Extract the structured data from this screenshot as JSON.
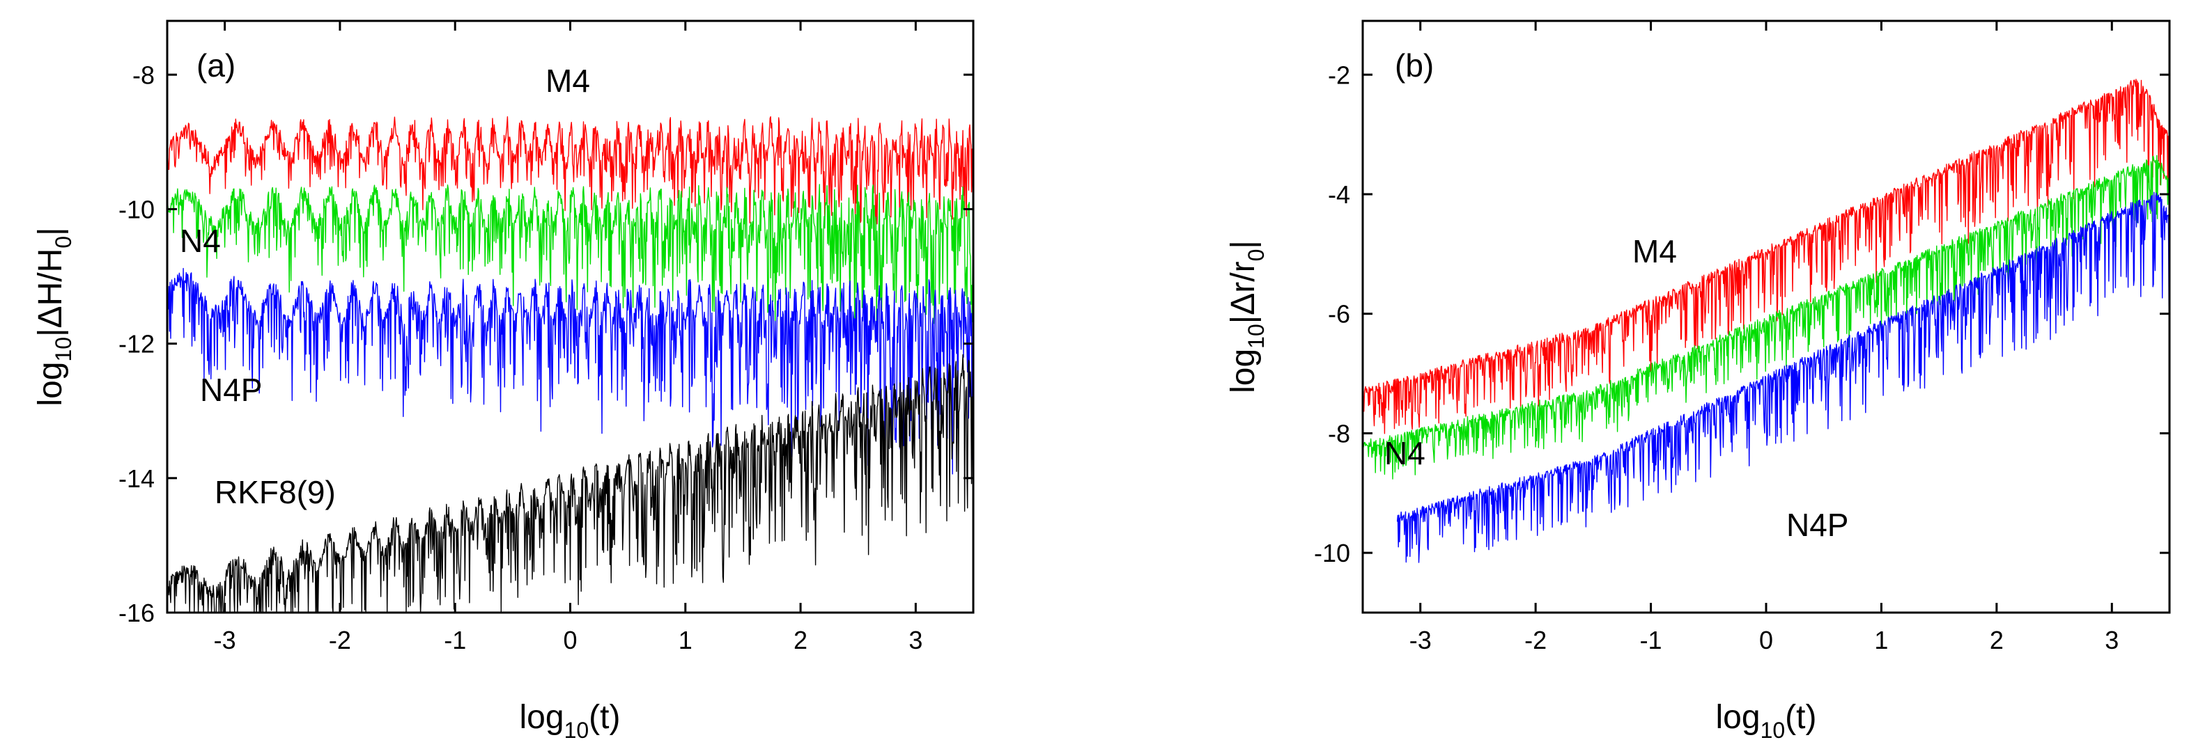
{
  "chart_data": [
    {
      "type": "line",
      "panel_label": "(a)",
      "xlabel": {
        "prefix": "log",
        "sub": "10",
        "suffix": "(t)"
      },
      "ylabel": {
        "prefix": "log",
        "sub": "10",
        "mid": "|ΔH/H",
        "sub2": "0",
        "suffix": "|"
      },
      "xlim": [
        -3.5,
        3.5
      ],
      "ylim": [
        -16,
        -7.2
      ],
      "xticks": [
        -3,
        -2,
        -1,
        0,
        1,
        2,
        3
      ],
      "yticks": [
        -8,
        -10,
        -12,
        -14,
        -16
      ],
      "series": [
        {
          "name": "M4",
          "label": "M4",
          "color": "#ff0000",
          "base": -9.0,
          "start": -9.1,
          "spike": 0.8,
          "slope": 0.0,
          "noise": 0.25,
          "seed": 11
        },
        {
          "name": "N4",
          "label": "N4",
          "color": "#00dd00",
          "base": -10.0,
          "start": -10.0,
          "spike": 1.2,
          "slope": 0.0,
          "noise": 0.25,
          "seed": 23
        },
        {
          "name": "N4P",
          "label": "N4P",
          "color": "#0000ff",
          "base": -11.4,
          "start": -11.2,
          "spike": 1.7,
          "slope": 0.0,
          "noise": 0.25,
          "seed": 37
        },
        {
          "name": "RKF8(9)",
          "label": "RKF8(9)",
          "color": "#000000",
          "base": -15.5,
          "start": -15.6,
          "end": -12.4,
          "spike": 1.6,
          "slope": 1.0,
          "noise": 0.2,
          "seed": 51
        }
      ]
    },
    {
      "type": "line",
      "panel_label": "(b)",
      "xlabel": {
        "prefix": "log",
        "sub": "10",
        "suffix": "(t)"
      },
      "ylabel": {
        "prefix": "log",
        "sub": "10",
        "mid": "|Δr/r",
        "sub2": "0",
        "suffix": "|"
      },
      "xlim": [
        -3.5,
        3.5
      ],
      "ylim": [
        -11,
        -1.1
      ],
      "xticks": [
        -3,
        -2,
        -1,
        0,
        1,
        2,
        3
      ],
      "yticks": [
        -2,
        -4,
        -6,
        -8,
        -10
      ],
      "series": [
        {
          "name": "M4",
          "label": "M4",
          "color": "#ff0000",
          "x0": -3.5,
          "y0": -8.0,
          "x1": 3.25,
          "y1": -2.1,
          "spike": 1.2,
          "seed": 61
        },
        {
          "name": "N4",
          "label": "N4",
          "color": "#00dd00",
          "x0": -3.5,
          "y0": -8.9,
          "x1": 3.4,
          "y1": -3.4,
          "spike": 0.9,
          "seed": 73
        },
        {
          "name": "N4P",
          "label": "N4P",
          "color": "#0000ff",
          "x0": -3.2,
          "y0": -10.0,
          "x1": 3.4,
          "y1": -4.0,
          "spike": 1.3,
          "seed": 89
        }
      ]
    }
  ]
}
